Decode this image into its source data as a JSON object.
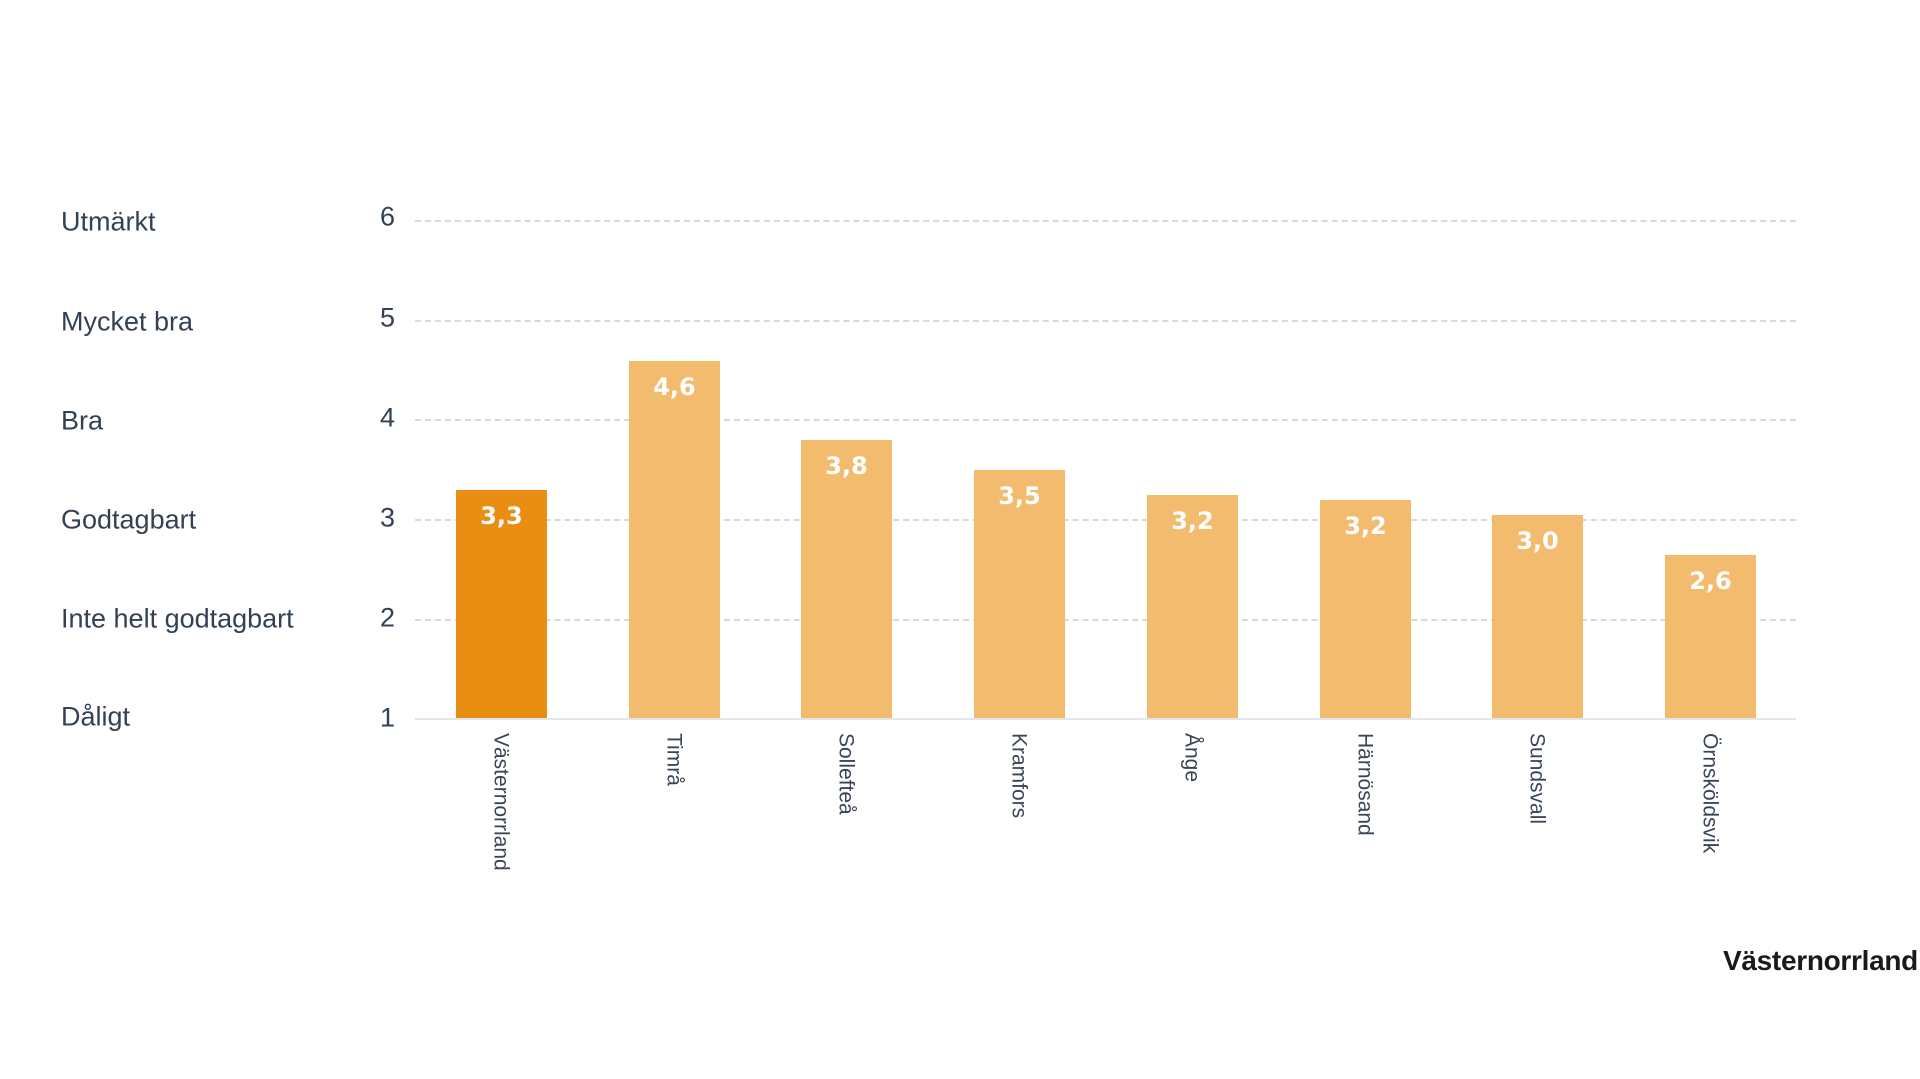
{
  "chart_data": {
    "type": "bar",
    "title": "",
    "xlabel": "",
    "ylabel": "",
    "ylim": [
      1,
      6
    ],
    "yticks": [
      6,
      5,
      4,
      3,
      2,
      1
    ],
    "ytick_category_labels": [
      "Utmärkt",
      "Mycket bra",
      "Bra",
      "Godtagbart",
      "Inte helt godtagbart",
      "Dåligt"
    ],
    "grid": true,
    "legend": "none",
    "categories": [
      "Västernorrland",
      "Timrå",
      "Sollefteå",
      "Kramfors",
      "Ånge",
      "Härnösand",
      "Sundsvall",
      "Örnsköldsvik"
    ],
    "values": [
      3.3,
      4.6,
      3.8,
      3.5,
      3.2,
      3.2,
      3.0,
      2.6
    ],
    "value_labels": [
      "3,3",
      "4,6",
      "3,8",
      "3,5",
      "3,2",
      "3,2",
      "3,0",
      "2,6"
    ],
    "highlighted_category": "Västernorrland",
    "colors": {
      "highlight": "#e98e12",
      "default": "#f3bb6e"
    },
    "footer_label": "Västernorrland"
  },
  "y_axis": {
    "scale_labels": [
      {
        "text": "Utmärkt",
        "tick": "6"
      },
      {
        "text": "Mycket bra",
        "tick": "5"
      },
      {
        "text": "Bra",
        "tick": "4"
      },
      {
        "text": "Godtagbart",
        "tick": "3"
      },
      {
        "text": "Inte helt godtagbart",
        "tick": "2"
      },
      {
        "text": "Dåligt",
        "tick": "1"
      }
    ]
  },
  "bars": [
    {
      "name": "Västernorrland",
      "value": 3.3,
      "label": "3,3"
    },
    {
      "name": "Timrå",
      "value": 4.6,
      "label": "4,6"
    },
    {
      "name": "Sollefteå",
      "value": 3.8,
      "label": "3,8"
    },
    {
      "name": "Kramfors",
      "value": 3.5,
      "label": "3,5"
    },
    {
      "name": "Ånge",
      "value": 3.25,
      "label": "3,2"
    },
    {
      "name": "Härnösand",
      "value": 3.2,
      "label": "3,2"
    },
    {
      "name": "Sundsvall",
      "value": 3.05,
      "label": "3,0"
    },
    {
      "name": "Örnsköldsvik",
      "value": 2.65,
      "label": "2,6"
    }
  ],
  "footer": {
    "region": "Västernorrland"
  }
}
